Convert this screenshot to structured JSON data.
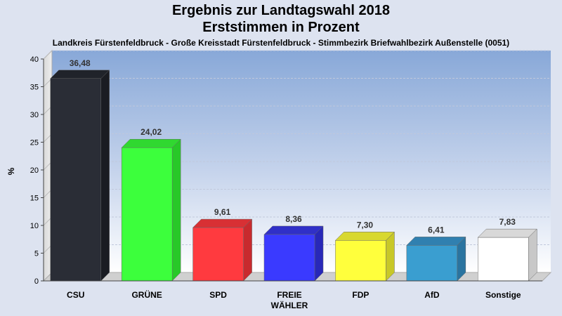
{
  "chart_data": {
    "type": "bar",
    "title": "Ergebnis zur Landtagswahl 2018",
    "subtitle_line": "Erststimmen in Prozent",
    "subtitle": "Landkreis Fürstenfeldbruck - Große Kreisstadt Fürstenfeldbruck - Stimmbezirk Briefwahlbezirk Außenstelle (0051)",
    "ylabel": "%",
    "xlabel": "",
    "ylim": [
      0,
      40
    ],
    "yticks": [
      0,
      5,
      10,
      15,
      20,
      25,
      30,
      35,
      40
    ],
    "grid": true,
    "categories": [
      "CSU",
      "GRÜNE",
      "SPD",
      "FREIE WÄHLER",
      "FDP",
      "AfD",
      "Sonstige"
    ],
    "category_lines": [
      [
        "CSU"
      ],
      [
        "GRÜNE"
      ],
      [
        "SPD"
      ],
      [
        "FREIE",
        "WÄHLER"
      ],
      [
        "FDP"
      ],
      [
        "AfD"
      ],
      [
        "Sonstige"
      ]
    ],
    "values": [
      36.48,
      24.02,
      9.61,
      8.36,
      7.3,
      6.41,
      7.83
    ],
    "value_labels": [
      "36,48",
      "24,02",
      "9,61",
      "8,36",
      "7,30",
      "6,41",
      "7,83"
    ],
    "colors": [
      "#2a2d36",
      "#3cff3c",
      "#ff3a3f",
      "#3a3aff",
      "#ffff3c",
      "#3a9ed0",
      "#ffffff"
    ],
    "side_colors": [
      "#1a1c22",
      "#28c828",
      "#c82a2e",
      "#2828b8",
      "#c8c828",
      "#2a74a0",
      "#c8c8c8"
    ],
    "top_colors": [
      "#20232a",
      "#30d830",
      "#d83034",
      "#3030c8",
      "#d8d830",
      "#3080b0",
      "#d8d8d8"
    ]
  }
}
